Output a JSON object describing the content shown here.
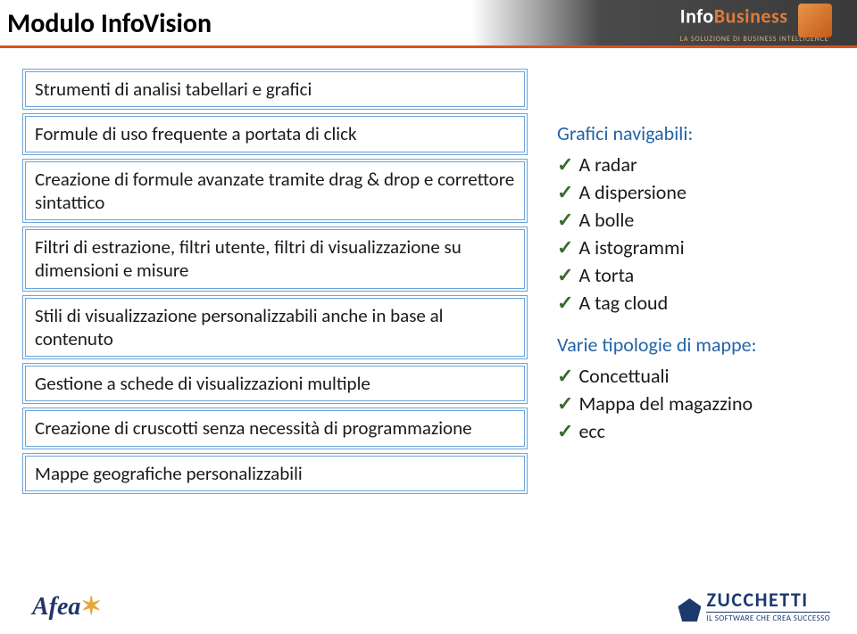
{
  "title": "Modulo InfoVision",
  "headerLogo": {
    "brandPart1": "Info",
    "brandPart2": "Business",
    "tagline": "LA SOLUZIONE DI BUSINESS INTELLIGENCE"
  },
  "boxes": [
    "Strumenti di analisi tabellari e grafici",
    "Formule di uso frequente a portata di click",
    "Creazione di formule avanzate tramite drag & drop e correttore sintattico",
    "Filtri di estrazione, filtri utente, filtri di visualizzazione su dimensioni e misure",
    "Stili di visualizzazione personalizzabili anche in base al contenuto",
    "Gestione a schede di visualizzazioni multiple",
    "Creazione di cruscotti senza necessità di programmazione",
    "Mappe geografiche personalizzabili"
  ],
  "right": {
    "section1": {
      "heading": "Grafici navigabili:",
      "items": [
        "A radar",
        "A dispersione",
        "A bolle",
        "A istogrammi",
        "A torta",
        "A tag cloud"
      ]
    },
    "section2": {
      "heading": "Varie tipologie di mappe:",
      "items": [
        "Concettuali",
        "Mappa del magazzino",
        "ecc"
      ]
    }
  },
  "footer": {
    "leftBrand": "Afea",
    "rightBrand": "ZUCCHETTI",
    "rightTagline": "IL SOFTWARE CHE CREA SUCCESSO"
  },
  "colors": {
    "accent": "#d9531e",
    "boxBorder": "#6aa4d9",
    "headingBlue": "#2564a8",
    "checkGreen": "#3a6a2a",
    "zucchettiBlue": "#1c3a6e",
    "afeaBlue": "#22356a"
  }
}
